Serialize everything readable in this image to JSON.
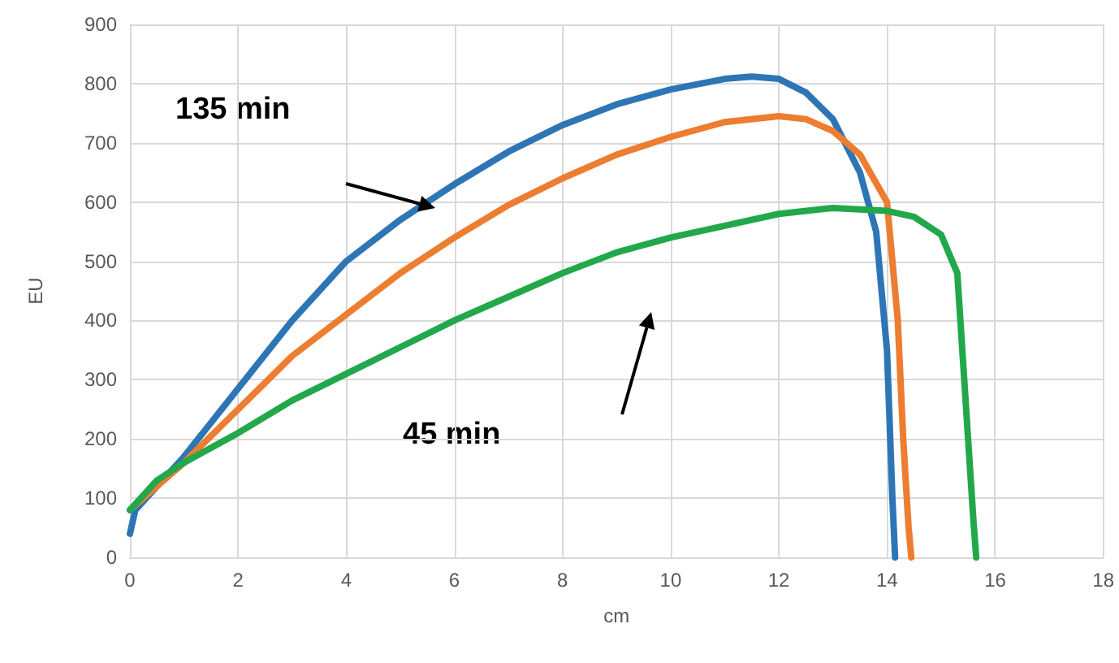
{
  "chart_data": {
    "type": "line",
    "xlabel": "cm",
    "ylabel": "EU",
    "xlim": [
      0,
      18
    ],
    "xticks": [
      0,
      2,
      4,
      6,
      8,
      10,
      12,
      14,
      16,
      18
    ],
    "ylim": [
      0,
      900
    ],
    "yticks": [
      0,
      100,
      200,
      300,
      400,
      500,
      600,
      700,
      800,
      900
    ],
    "grid": true,
    "marker": "none",
    "line_style": "solid",
    "annotations": [
      "135 min",
      "45 min"
    ],
    "series": [
      {
        "color": "#2e75b6",
        "x": [
          0,
          0.1,
          0.5,
          1,
          2,
          3,
          4,
          5,
          6,
          7,
          8,
          9,
          10,
          11,
          11.5,
          12,
          12.5,
          13,
          13.5,
          13.8,
          14,
          14.1,
          14.15
        ],
        "values": [
          40,
          80,
          120,
          170,
          285,
          400,
          500,
          570,
          630,
          685,
          730,
          765,
          790,
          808,
          812,
          808,
          785,
          740,
          650,
          550,
          350,
          100,
          0
        ]
      },
      {
        "color": "#ed7d31",
        "x": [
          0,
          0.5,
          1,
          2,
          3,
          4,
          5,
          6,
          7,
          8,
          9,
          10,
          11,
          12,
          12.5,
          13,
          13.5,
          14,
          14.2,
          14.3,
          14.4,
          14.45
        ],
        "values": [
          80,
          120,
          160,
          250,
          340,
          410,
          480,
          540,
          595,
          640,
          680,
          710,
          735,
          745,
          740,
          720,
          680,
          600,
          400,
          200,
          50,
          0
        ]
      },
      {
        "color": "#22a84a",
        "x": [
          0,
          0.5,
          1,
          2,
          3,
          4,
          5,
          6,
          7,
          8,
          9,
          10,
          11,
          12,
          13,
          14,
          14.5,
          15,
          15.3,
          15.5,
          15.6,
          15.65
        ],
        "values": [
          80,
          130,
          160,
          210,
          265,
          310,
          355,
          400,
          440,
          480,
          515,
          540,
          560,
          580,
          590,
          585,
          575,
          545,
          480,
          200,
          60,
          0
        ]
      }
    ]
  }
}
